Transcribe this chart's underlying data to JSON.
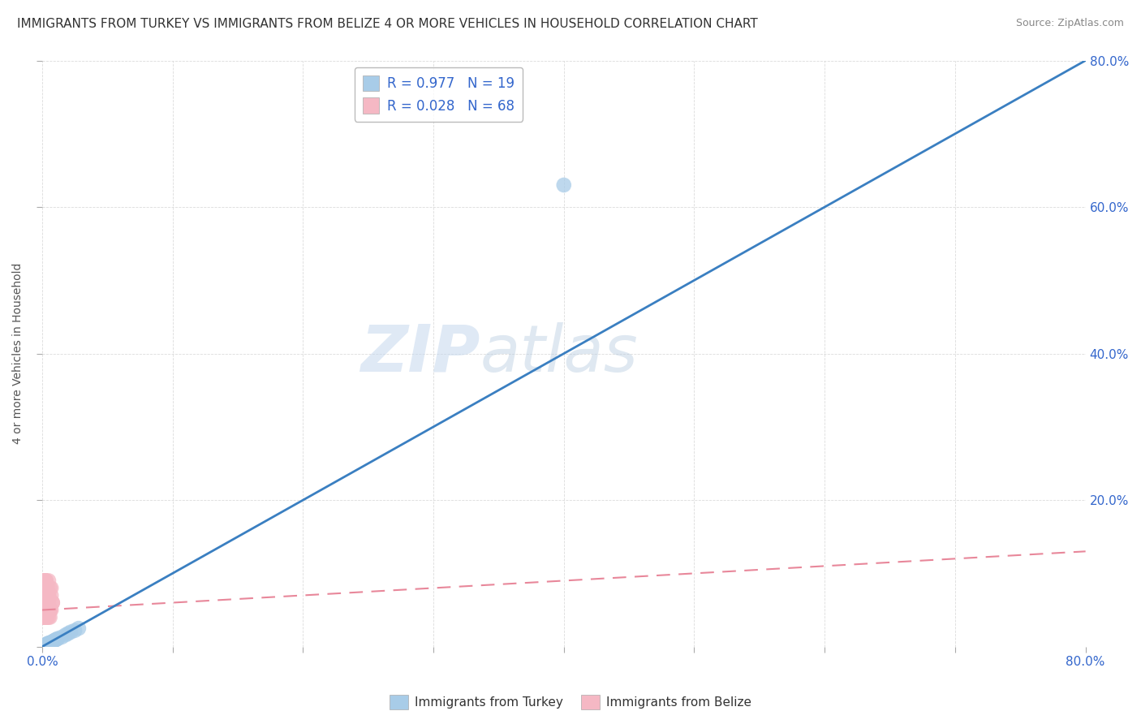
{
  "title": "IMMIGRANTS FROM TURKEY VS IMMIGRANTS FROM BELIZE 4 OR MORE VEHICLES IN HOUSEHOLD CORRELATION CHART",
  "source": "Source: ZipAtlas.com",
  "ylabel": "4 or more Vehicles in Household",
  "xlim": [
    0,
    0.8
  ],
  "ylim": [
    0,
    0.8
  ],
  "turkey_R": 0.977,
  "turkey_N": 19,
  "belize_R": 0.028,
  "belize_N": 68,
  "turkey_color": "#a8cce8",
  "belize_color": "#f5b8c4",
  "turkey_line_color": "#3a7fc1",
  "belize_line_color": "#e8879a",
  "legend_label_color": "#3366cc",
  "watermark_zip": "ZIP",
  "watermark_atlas": "atlas",
  "background_color": "#ffffff",
  "grid_color": "#cccccc",
  "title_fontsize": 11,
  "tick_label_color": "#3366cc",
  "turkey_line_x": [
    0.0,
    0.8
  ],
  "turkey_line_y": [
    0.0,
    0.8
  ],
  "belize_line_x": [
    0.0,
    0.8
  ],
  "belize_line_y": [
    0.05,
    0.13
  ],
  "turkey_scatter_x": [
    0.001,
    0.002,
    0.003,
    0.004,
    0.005,
    0.006,
    0.007,
    0.008,
    0.009,
    0.01,
    0.011,
    0.012,
    0.015,
    0.018,
    0.02,
    0.022,
    0.025,
    0.028,
    0.4
  ],
  "turkey_scatter_y": [
    0.001,
    0.002,
    0.003,
    0.004,
    0.005,
    0.005,
    0.006,
    0.007,
    0.008,
    0.009,
    0.01,
    0.011,
    0.013,
    0.016,
    0.018,
    0.02,
    0.022,
    0.025,
    0.63
  ],
  "belize_scatter_x": [
    0.001,
    0.002,
    0.001,
    0.003,
    0.002,
    0.004,
    0.001,
    0.003,
    0.002,
    0.005,
    0.001,
    0.002,
    0.003,
    0.001,
    0.002,
    0.004,
    0.001,
    0.003,
    0.002,
    0.001,
    0.005,
    0.002,
    0.003,
    0.001,
    0.004,
    0.002,
    0.001,
    0.003,
    0.002,
    0.005,
    0.001,
    0.002,
    0.003,
    0.001,
    0.002,
    0.004,
    0.001,
    0.003,
    0.002,
    0.001,
    0.005,
    0.002,
    0.003,
    0.001,
    0.004,
    0.002,
    0.001,
    0.003,
    0.002,
    0.005,
    0.006,
    0.007,
    0.008,
    0.006,
    0.007,
    0.005,
    0.006,
    0.008,
    0.007,
    0.006,
    0.004,
    0.003,
    0.005,
    0.004,
    0.006,
    0.003,
    0.005,
    0.004
  ],
  "belize_scatter_y": [
    0.04,
    0.06,
    0.08,
    0.05,
    0.07,
    0.04,
    0.09,
    0.06,
    0.05,
    0.07,
    0.08,
    0.04,
    0.06,
    0.07,
    0.05,
    0.08,
    0.04,
    0.09,
    0.06,
    0.05,
    0.07,
    0.04,
    0.06,
    0.08,
    0.05,
    0.07,
    0.04,
    0.09,
    0.06,
    0.05,
    0.07,
    0.08,
    0.04,
    0.06,
    0.07,
    0.05,
    0.08,
    0.04,
    0.09,
    0.06,
    0.05,
    0.07,
    0.04,
    0.06,
    0.08,
    0.05,
    0.07,
    0.04,
    0.09,
    0.06,
    0.05,
    0.07,
    0.06,
    0.08,
    0.05,
    0.07,
    0.04,
    0.06,
    0.08,
    0.05,
    0.07,
    0.04,
    0.09,
    0.06,
    0.05,
    0.07,
    0.04,
    0.06
  ]
}
